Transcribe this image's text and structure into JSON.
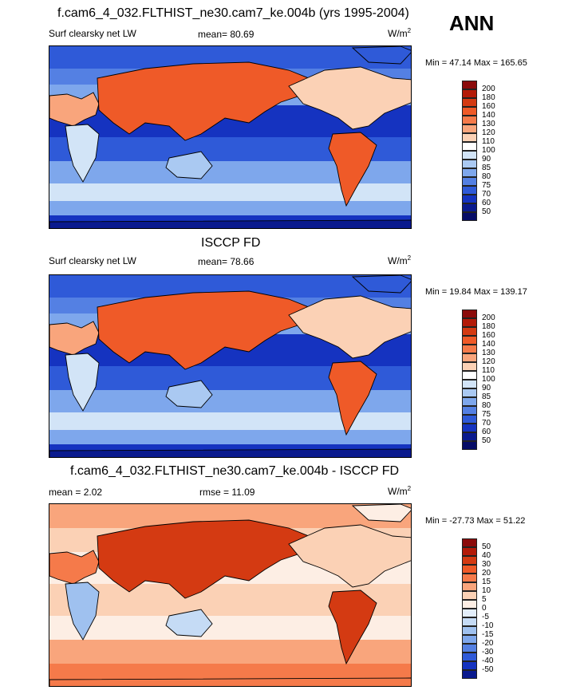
{
  "header": {
    "season": "ANN"
  },
  "panels": [
    {
      "title": "f.cam6_4_032.FLTHIST_ne30.cam7_ke.004b (yrs 1995-2004)",
      "left_label": "Surf clearsky net LW",
      "center_label": "mean=  80.69",
      "units": "W/m",
      "units_exp": "2",
      "minmax": "Min =  47.14 Max = 165.65",
      "kind": "abs"
    },
    {
      "title": "ISCCP FD",
      "left_label": "Surf clearsky net LW",
      "center_label": "mean=  78.66",
      "units": "W/m",
      "units_exp": "2",
      "minmax": "Min =  19.84 Max = 139.17",
      "kind": "abs"
    },
    {
      "title": "f.cam6_4_032.FLTHIST_ne30.cam7_ke.004b - ISCCP FD",
      "left_label": "mean =   2.02",
      "center_label": "rmse =  11.09",
      "units": "W/m",
      "units_exp": "2",
      "minmax": "Min = -27.73 Max =  51.22",
      "kind": "diff"
    }
  ],
  "chart_data": {
    "type": "heatmap",
    "season": "ANN",
    "variable": "Surf clearsky net LW",
    "units": "W/m^2",
    "maps": [
      {
        "name": "f.cam6_4_032.FLTHIST_ne30.cam7_ke.004b (yrs 1995-2004)",
        "mean": 80.69,
        "min": 47.14,
        "max": 165.65
      },
      {
        "name": "ISCCP FD",
        "mean": 78.66,
        "min": 19.84,
        "max": 139.17
      },
      {
        "name": "f.cam6_4_032.FLTHIST_ne30.cam7_ke.004b - ISCCP FD",
        "mean": 2.02,
        "rmse": 11.09,
        "min": -27.73,
        "max": 51.22
      }
    ],
    "colorbars": {
      "abs": {
        "levels": [
          "200",
          "180",
          "160",
          "140",
          "130",
          "120",
          "110",
          "100",
          "90",
          "85",
          "80",
          "75",
          "70",
          "60",
          "50"
        ],
        "colors": [
          "#8b0b0b",
          "#b31a08",
          "#d43a12",
          "#ef5a28",
          "#f57a4a",
          "#f9a57c",
          "#fbd1b5",
          "#ffffff",
          "#d2e4f7",
          "#aac9f2",
          "#7ea7ec",
          "#5480e3",
          "#2f5ad8",
          "#1533c0",
          "#0a1a8e",
          "#060c66"
        ]
      },
      "diff": {
        "levels": [
          "50",
          "40",
          "30",
          "20",
          "15",
          "10",
          "5",
          "0",
          "-5",
          "-10",
          "-15",
          "-20",
          "-30",
          "-40",
          "-50"
        ],
        "colors": [
          "#8b0b0b",
          "#b31a08",
          "#d43a12",
          "#ef5a28",
          "#f57a4a",
          "#f9a57c",
          "#fbd1b5",
          "#fdeee4",
          "#e3eefb",
          "#c5dbf5",
          "#9fc1ef",
          "#7ea7ec",
          "#5480e3",
          "#2f5ad8",
          "#1533c0",
          "#0a1a8e"
        ]
      }
    }
  }
}
